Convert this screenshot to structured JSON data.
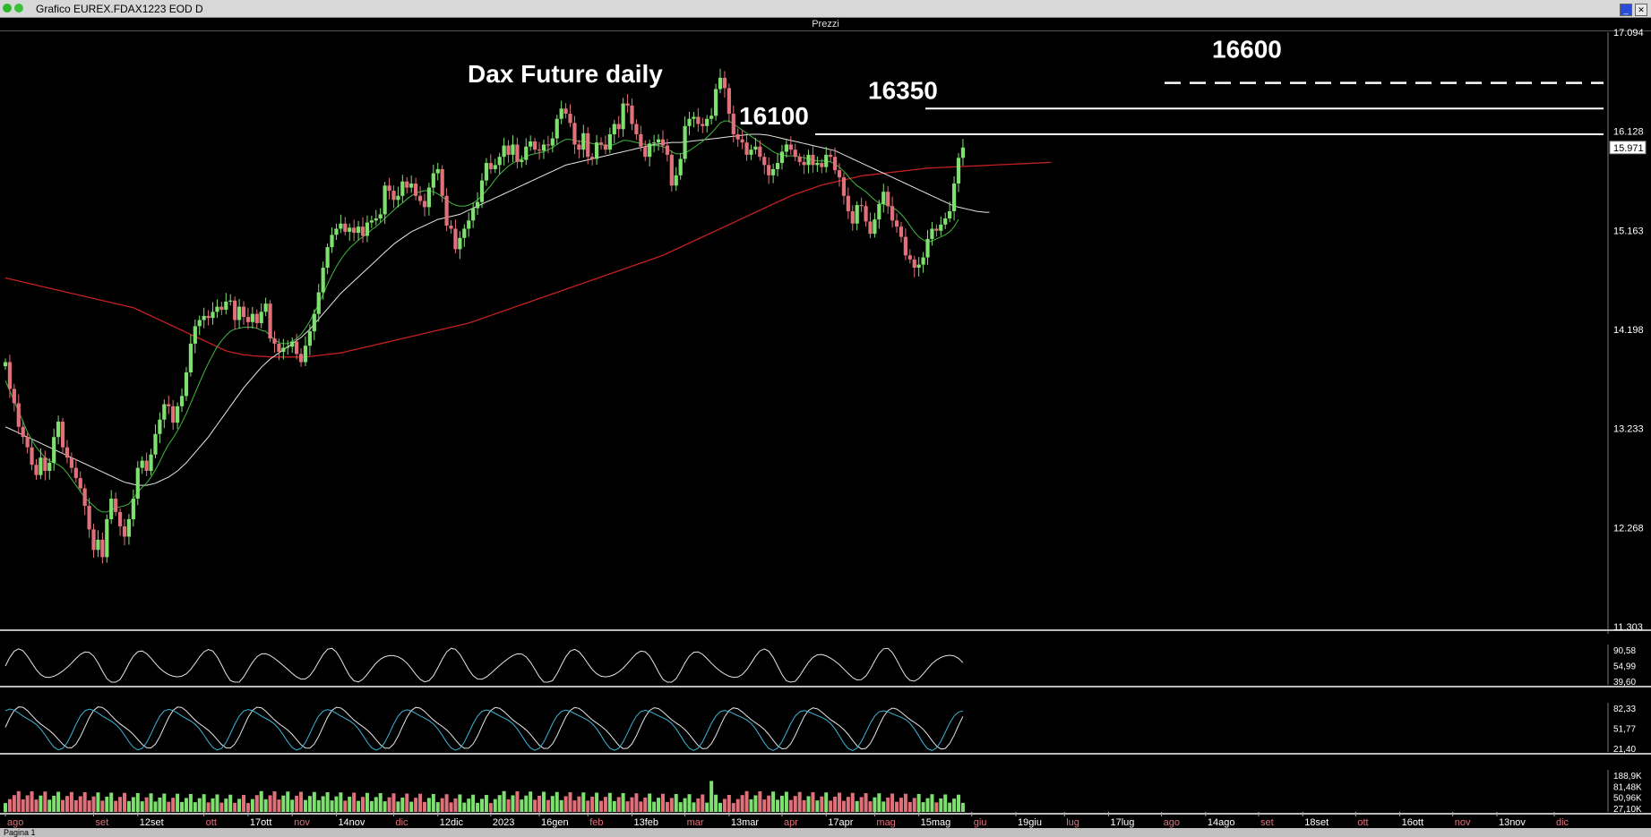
{
  "window": {
    "title": "Grafico EUREX.FDAX1223 EOD D",
    "pane_title": "Prezzi",
    "status": "Pagina 1"
  },
  "colors": {
    "up": "#7ee16f",
    "down": "#e0707a",
    "ma_short": "#3fb83f",
    "ma_mid": "#e6e6e6",
    "ma_long": "#c42020",
    "osc1": "#e6e6e6",
    "osc2a": "#e6e6e6",
    "osc2b": "#3ab6d8"
  },
  "chart_data": [
    {
      "type": "candlestick",
      "title": "Dax Future daily",
      "y_ticks": [
        "17.094",
        "16.128",
        "15.163",
        "14.198",
        "13.233",
        "12.268",
        "11.303"
      ],
      "last_price": "15.971",
      "ylim": [
        11303,
        17094
      ],
      "x_ticks": [
        "ago",
        "set",
        "12set",
        "ott",
        "17ott",
        "nov",
        "14nov",
        "dic",
        "12dic",
        "2023",
        "16gen",
        "feb",
        "13feb",
        "mar",
        "13mar",
        "apr",
        "17apr",
        "mag",
        "15mag",
        "giu",
        "19giu",
        "lug",
        "17lug",
        "ago",
        "14ago",
        "set",
        "18set",
        "ott",
        "16ott",
        "nov",
        "13nov",
        "dic"
      ],
      "x_tick_index": [
        0,
        20,
        30,
        45,
        55,
        65,
        75,
        88,
        98,
        110,
        121,
        132,
        142,
        154,
        164,
        176,
        186,
        197,
        207,
        219,
        229,
        240,
        250,
        262,
        272,
        284,
        294,
        306,
        316,
        328,
        338,
        351
      ],
      "horizontal_levels": [
        {
          "label": "16100",
          "value": 16100,
          "style": "solid"
        },
        {
          "label": "16350",
          "value": 16350,
          "style": "solid"
        },
        {
          "label": "16600",
          "value": 16600,
          "style": "dashed"
        }
      ],
      "closes": [
        13880,
        13620,
        13480,
        13250,
        13150,
        13050,
        12880,
        12780,
        12950,
        12820,
        12900,
        13150,
        13300,
        13050,
        12950,
        12850,
        12750,
        12650,
        12480,
        12250,
        12050,
        12150,
        11980,
        12350,
        12550,
        12420,
        12280,
        12180,
        12350,
        12550,
        12850,
        12920,
        12820,
        12980,
        13180,
        13320,
        13470,
        13450,
        13290,
        13450,
        13550,
        13780,
        14060,
        14230,
        14290,
        14330,
        14310,
        14370,
        14420,
        14390,
        14470,
        14480,
        14290,
        14420,
        14320,
        14270,
        14350,
        14260,
        14370,
        14450,
        14110,
        14060,
        13980,
        14020,
        14030,
        14080,
        13960,
        13880,
        14040,
        14180,
        14350,
        14560,
        14800,
        15000,
        15120,
        15180,
        15230,
        15150,
        15190,
        15140,
        15200,
        15110,
        15240,
        15260,
        15280,
        15320,
        15600,
        15550,
        15460,
        15500,
        15640,
        15580,
        15620,
        15500,
        15450,
        15390,
        15580,
        15720,
        15760,
        15500,
        15210,
        15180,
        14980,
        15090,
        15180,
        15260,
        15380,
        15440,
        15650,
        15820,
        15760,
        15800,
        15880,
        15990,
        15900,
        16000,
        15830,
        15850,
        15980,
        16030,
        15950,
        15940,
        16000,
        15990,
        16060,
        16250,
        16350,
        16300,
        16210,
        16000,
        15950,
        16110,
        15880,
        15860,
        16020,
        16000,
        15950,
        16100,
        16200,
        16150,
        16400,
        16380,
        16200,
        16100,
        15980,
        15880,
        16010,
        16020,
        16050,
        15990,
        15900,
        15600,
        15700,
        15860,
        16180,
        16250,
        16270,
        16200,
        16180,
        16250,
        16280,
        16540,
        16650,
        16550,
        16300,
        16100,
        16050,
        16020,
        15900,
        15950,
        15980,
        15880,
        15800,
        15700,
        15760,
        15820,
        15930,
        16000,
        15950,
        15880,
        15830,
        15800,
        15900,
        15800,
        15820,
        15780,
        15900,
        15880,
        15750,
        15680,
        15500,
        15350,
        15230,
        15410,
        15400,
        15250,
        15130,
        15270,
        15420,
        15540,
        15400,
        15260,
        15200,
        15100,
        14920,
        14880,
        14800,
        14830,
        14900,
        15080,
        15180,
        15160,
        15220,
        15280,
        15350,
        15620,
        15870,
        15971
      ],
      "ma_short": [
        13700,
        13600,
        13500,
        13400,
        13300,
        13200,
        13120,
        13050,
        13000,
        12950,
        12920,
        12900,
        12880,
        12850,
        12800,
        12740,
        12680,
        12620,
        12560,
        12520,
        12480,
        12440,
        12420,
        12420,
        12440,
        12460,
        12470,
        12480,
        12500,
        12550,
        12610,
        12660,
        12700,
        12760,
        12830,
        12910,
        13000,
        13080,
        13140,
        13210,
        13290,
        13380,
        13480,
        13580,
        13680,
        13780,
        13870,
        13950,
        14030,
        14090,
        14140,
        14180,
        14200,
        14210,
        14220,
        14220,
        14220,
        14210,
        14190,
        14180,
        14140,
        14100,
        14070,
        14060,
        14060,
        14080,
        14110,
        14150,
        14210,
        14280,
        14360,
        14450,
        14540,
        14640,
        14730,
        14810,
        14880,
        14940,
        14990,
        15030,
        15070,
        15100,
        15130,
        15170,
        15200,
        15240,
        15280,
        15320,
        15360,
        15400,
        15430,
        15470,
        15500,
        15530,
        15540,
        15550,
        15550,
        15540,
        15520,
        15490,
        15460,
        15430,
        15410,
        15400,
        15400,
        15410,
        15430,
        15460,
        15500,
        15550,
        15600,
        15660,
        15710,
        15750,
        15790,
        15820,
        15840,
        15860,
        15880,
        15900,
        15910,
        15920,
        15930,
        15950,
        15970,
        16000,
        16030,
        16050,
        16050,
        16040,
        16030,
        16030,
        16020,
        16010,
        16000,
        16000,
        15990,
        15990,
        16000,
        16020,
        16040,
        16040,
        16030,
        16020,
        16010,
        16000,
        15990,
        15990,
        15990,
        15980,
        15960,
        15930,
        15910,
        15910,
        15920,
        15940,
        15970,
        16000,
        16030,
        16070,
        16110,
        16160,
        16210,
        16230,
        16230,
        16200,
        16170,
        16140,
        16110,
        16080,
        16050,
        16020,
        15990,
        15960,
        15930,
        15910,
        15900,
        15890,
        15890,
        15890,
        15880,
        15870,
        15860,
        15850,
        15840,
        15840,
        15840,
        15830,
        15810,
        15780,
        15740,
        15690,
        15640,
        15600,
        15570,
        15540,
        15500,
        15460,
        15430,
        15420,
        15410,
        15390,
        15360,
        15320,
        15270,
        15210,
        15150,
        15100,
        15070,
        15050,
        15060,
        15080,
        15100,
        15120,
        15150,
        15200,
        15270
      ],
      "ma_mid": [
        13250,
        13230,
        13210,
        13190,
        13170,
        13150,
        13130,
        13110,
        13090,
        13070,
        13050,
        13030,
        13010,
        12990,
        12970,
        12950,
        12930,
        12910,
        12890,
        12870,
        12850,
        12830,
        12810,
        12790,
        12770,
        12750,
        12730,
        12710,
        12700,
        12690,
        12680,
        12680,
        12680,
        12690,
        12700,
        12720,
        12740,
        12760,
        12790,
        12820,
        12860,
        12900,
        12950,
        13000,
        13050,
        13100,
        13150,
        13210,
        13270,
        13330,
        13390,
        13450,
        13510,
        13570,
        13630,
        13680,
        13730,
        13780,
        13830,
        13870,
        13910,
        13940,
        13970,
        14000,
        14030,
        14060,
        14090,
        14120,
        14160,
        14200,
        14250,
        14300,
        14350,
        14400,
        14450,
        14500,
        14550,
        14590,
        14630,
        14670,
        14710,
        14750,
        14790,
        14830,
        14870,
        14910,
        14950,
        14990,
        15030,
        15060,
        15090,
        15120,
        15150,
        15170,
        15190,
        15210,
        15230,
        15250,
        15270,
        15280,
        15290,
        15300,
        15310,
        15320,
        15340,
        15360,
        15380,
        15400,
        15420,
        15440,
        15460,
        15480,
        15500,
        15520,
        15540,
        15560,
        15580,
        15600,
        15620,
        15640,
        15660,
        15680,
        15700,
        15720,
        15740,
        15760,
        15780,
        15800,
        15810,
        15820,
        15830,
        15840,
        15850,
        15860,
        15870,
        15880,
        15890,
        15900,
        15910,
        15920,
        15930,
        15940,
        15950,
        15960,
        15970,
        15980,
        15990,
        16000,
        16005,
        16010,
        16015,
        16020,
        16020,
        16020,
        16025,
        16030,
        16035,
        16040,
        16045,
        16050,
        16055,
        16060,
        16065,
        16070,
        16075,
        16080,
        16085,
        16090,
        16095,
        16100,
        16100,
        16100,
        16095,
        16090,
        16080,
        16070,
        16060,
        16050,
        16040,
        16030,
        16020,
        16010,
        16000,
        15990,
        15980,
        15970,
        15960,
        15950,
        15940,
        15920,
        15900,
        15880,
        15860,
        15840,
        15820,
        15800,
        15780,
        15760,
        15740,
        15720,
        15700,
        15680,
        15660,
        15640,
        15620,
        15600,
        15580,
        15560,
        15540,
        15520,
        15500,
        15480,
        15460,
        15440,
        15420,
        15400,
        15390,
        15380,
        15370,
        15360,
        15350,
        15345,
        15340,
        15340
      ],
      "ma_long": [
        14700,
        14690,
        14680,
        14670,
        14660,
        14650,
        14640,
        14630,
        14620,
        14610,
        14600,
        14590,
        14580,
        14570,
        14560,
        14550,
        14540,
        14530,
        14520,
        14510,
        14500,
        14490,
        14480,
        14470,
        14460,
        14450,
        14440,
        14430,
        14420,
        14410,
        14390,
        14370,
        14350,
        14330,
        14310,
        14290,
        14270,
        14250,
        14230,
        14210,
        14190,
        14170,
        14150,
        14130,
        14110,
        14090,
        14070,
        14050,
        14030,
        14010,
        13990,
        13980,
        13970,
        13960,
        13950,
        13950,
        13940,
        13940,
        13935,
        13935,
        13930,
        13930,
        13930,
        13930,
        13930,
        13930,
        13930,
        13930,
        13930,
        13935,
        13940,
        13945,
        13950,
        13955,
        13960,
        13965,
        13970,
        13980,
        13990,
        14000,
        14010,
        14020,
        14030,
        14040,
        14050,
        14060,
        14070,
        14080,
        14090,
        14100,
        14110,
        14120,
        14130,
        14140,
        14150,
        14160,
        14170,
        14180,
        14190,
        14200,
        14210,
        14220,
        14230,
        14240,
        14250,
        14260,
        14275,
        14290,
        14305,
        14320,
        14335,
        14350,
        14365,
        14380,
        14395,
        14410,
        14425,
        14440,
        14455,
        14470,
        14485,
        14500,
        14515,
        14530,
        14545,
        14560,
        14575,
        14590,
        14605,
        14620,
        14635,
        14650,
        14665,
        14680,
        14695,
        14710,
        14725,
        14740,
        14755,
        14770,
        14785,
        14800,
        14815,
        14830,
        14845,
        14860,
        14875,
        14890,
        14905,
        14920,
        14940,
        14960,
        14980,
        15000,
        15020,
        15040,
        15060,
        15080,
        15100,
        15120,
        15140,
        15160,
        15180,
        15200,
        15220,
        15240,
        15260,
        15280,
        15300,
        15320,
        15340,
        15360,
        15380,
        15400,
        15420,
        15440,
        15460,
        15480,
        15500,
        15515,
        15530,
        15545,
        15560,
        15575,
        15590,
        15605,
        15615,
        15625,
        15635,
        15645,
        15655,
        15665,
        15675,
        15685,
        15695,
        15700,
        15705,
        15710,
        15715,
        15720,
        15725,
        15730,
        15735,
        15740,
        15745,
        15750,
        15755,
        15760,
        15765,
        15770,
        15772,
        15774,
        15776,
        15778,
        15780,
        15782,
        15784,
        15786,
        15788,
        15790,
        15792,
        15794,
        15796,
        15798,
        15800,
        15802,
        15804,
        15806,
        15808,
        15810,
        15812,
        15814,
        15816,
        15818,
        15820,
        15822,
        15824,
        15826
      ]
    },
    {
      "type": "line",
      "y_ticks": [
        "90,58",
        "54,99",
        "39,60"
      ],
      "ylim": [
        20,
        95
      ]
    },
    {
      "type": "line",
      "y_ticks": [
        "82,33",
        "51,77",
        "21,40"
      ],
      "ylim": [
        0,
        100
      ]
    },
    {
      "type": "bar",
      "y_ticks": [
        "188,9K",
        "81,48K",
        "50,96K",
        "27,10K"
      ],
      "ylim": [
        0,
        190
      ]
    }
  ]
}
